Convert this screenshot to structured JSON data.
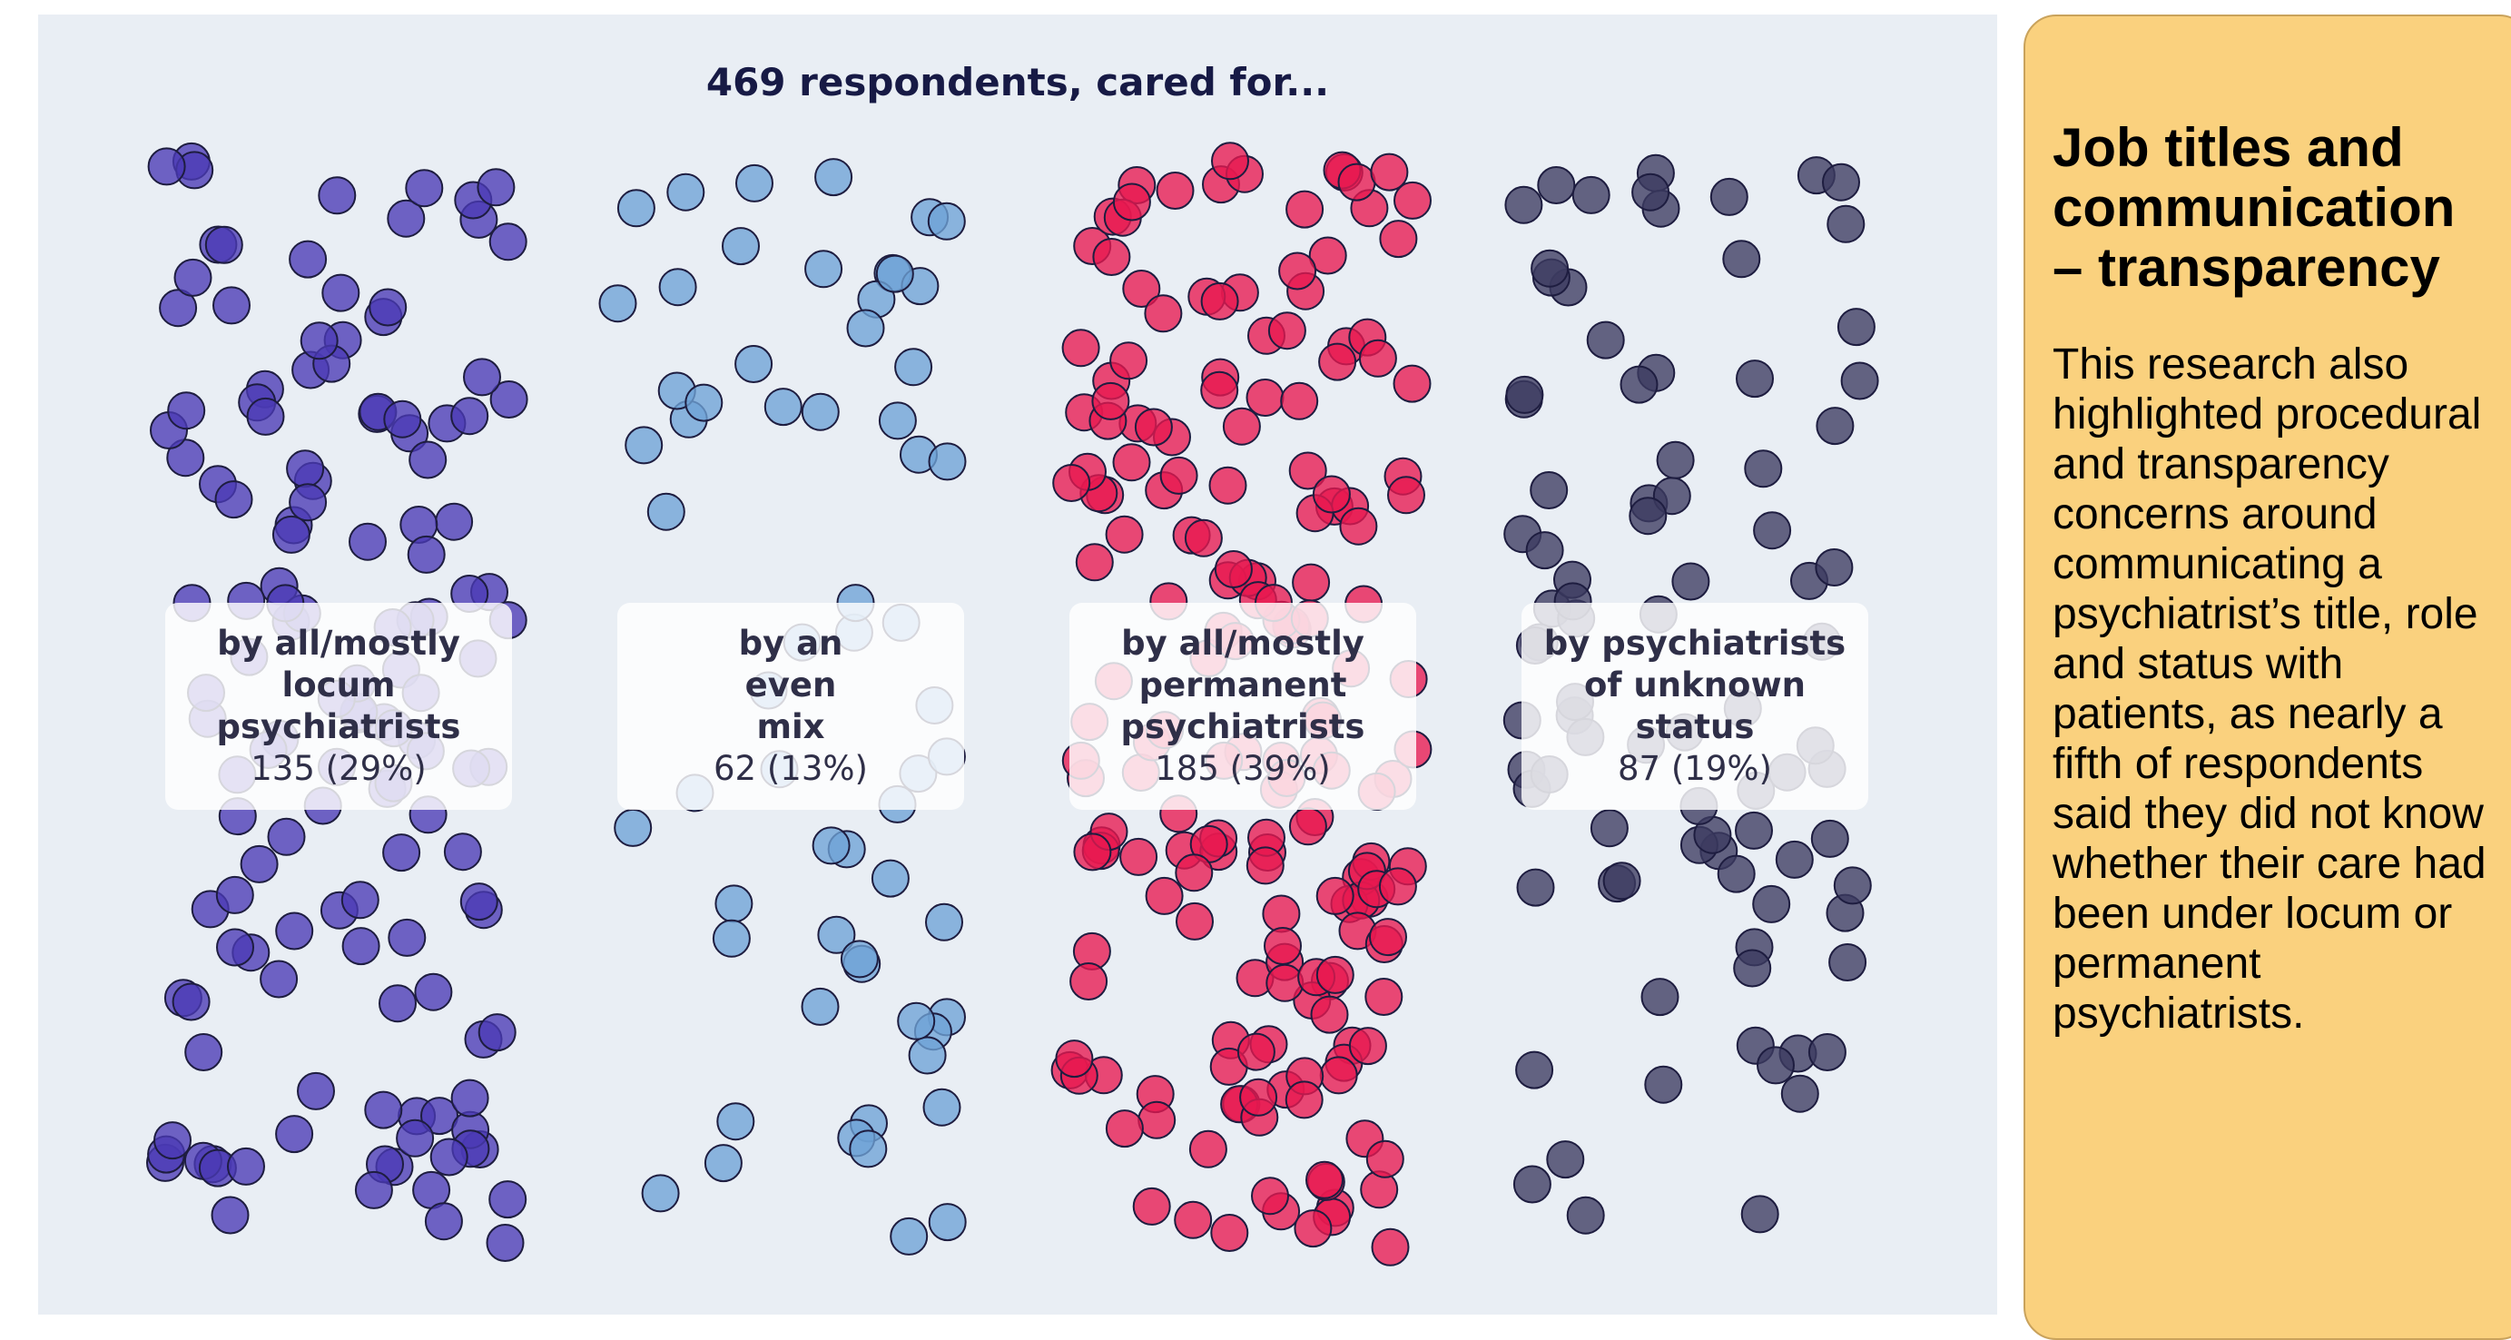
{
  "chart_data": {
    "type": "scatter",
    "title": "469 respondents, cared for...",
    "total": 469,
    "groups": [
      {
        "label": "by all/mostly\nlocum\npsychiatrists",
        "count": 135,
        "percent": 29,
        "value_text": "135 (29%)",
        "color": "#4a3ab5"
      },
      {
        "label": "by an\neven\nmix",
        "count": 62,
        "percent": 13,
        "value_text": "62 (13%)",
        "color": "#6ea3d6"
      },
      {
        "label": "by all/mostly\npermanent\npsychiatrists",
        "count": 185,
        "percent": 39,
        "value_text": "185 (39%)",
        "color": "#e8184f"
      },
      {
        "label": "by psychiatrists\nof unknown\nstatus",
        "count": 87,
        "percent": 19,
        "value_text": "87 (19%)",
        "color": "#3c3b60"
      }
    ]
  },
  "side_panel": {
    "title": "Job titles and\ncommunication\n– transparency",
    "body": "This research also highlighted procedural and transparency concerns around communicating a psychiatrist’s title, role and status with patients, as nearly a fifth of respondents said they did not know whether their care had been under locum or permanent psychiatrists."
  }
}
